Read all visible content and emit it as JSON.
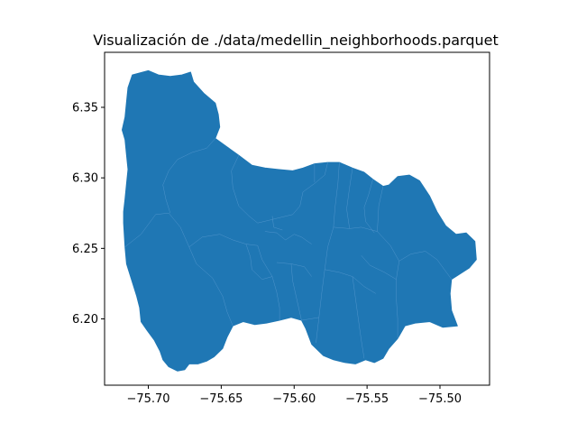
{
  "chart_data": {
    "type": "map",
    "title": "Visualización de ./data/medellin_neighborhoods.parquet",
    "xlabel": "",
    "ylabel": "",
    "xlim": [
      -75.73,
      -75.466
    ],
    "ylim": [
      6.153,
      6.389
    ],
    "x_ticks": [
      -75.7,
      -75.65,
      -75.6,
      -75.55,
      -75.5
    ],
    "x_tick_labels": [
      "−75.70",
      "−75.65",
      "−75.60",
      "−75.55",
      "−75.50"
    ],
    "y_ticks": [
      6.2,
      6.25,
      6.3,
      6.35
    ],
    "y_tick_labels": [
      "6.20",
      "6.25",
      "6.30",
      "6.35"
    ],
    "grid": false,
    "fill_color": "#1f77b4",
    "border_color": "#5a9ad0",
    "outline": [
      [
        -75.711,
        6.373
      ],
      [
        -75.7,
        6.376
      ],
      [
        -75.693,
        6.373
      ],
      [
        -75.685,
        6.372
      ],
      [
        -75.677,
        6.373
      ],
      [
        -75.671,
        6.375
      ],
      [
        -75.669,
        6.368
      ],
      [
        -75.662,
        6.36
      ],
      [
        -75.654,
        6.353
      ],
      [
        -75.652,
        6.345
      ],
      [
        -75.651,
        6.336
      ],
      [
        -75.654,
        6.328
      ],
      [
        -75.646,
        6.322
      ],
      [
        -75.638,
        6.316
      ],
      [
        -75.629,
        6.309
      ],
      [
        -75.62,
        6.307
      ],
      [
        -75.611,
        6.306
      ],
      [
        -75.601,
        6.305
      ],
      [
        -75.594,
        6.307
      ],
      [
        -75.586,
        6.31
      ],
      [
        -75.577,
        6.311
      ],
      [
        -75.569,
        6.311
      ],
      [
        -75.56,
        6.307
      ],
      [
        -75.552,
        6.304
      ],
      [
        -75.546,
        6.299
      ],
      [
        -75.539,
        6.294
      ],
      [
        -75.535,
        6.295
      ],
      [
        -75.529,
        6.301
      ],
      [
        -75.521,
        6.302
      ],
      [
        -75.514,
        6.298
      ],
      [
        -75.507,
        6.287
      ],
      [
        -75.502,
        6.276
      ],
      [
        -75.496,
        6.266
      ],
      [
        -75.489,
        6.26
      ],
      [
        -75.482,
        6.261
      ],
      [
        -75.476,
        6.255
      ],
      [
        -75.475,
        6.242
      ],
      [
        -75.48,
        6.236
      ],
      [
        -75.492,
        6.228
      ],
      [
        -75.493,
        6.218
      ],
      [
        -75.492,
        6.206
      ],
      [
        -75.488,
        6.195
      ],
      [
        -75.498,
        6.194
      ],
      [
        -75.507,
        6.198
      ],
      [
        -75.517,
        6.197
      ],
      [
        -75.524,
        6.195
      ],
      [
        -75.529,
        6.186
      ],
      [
        -75.535,
        6.179
      ],
      [
        -75.539,
        6.172
      ],
      [
        -75.545,
        6.169
      ],
      [
        -75.551,
        6.171
      ],
      [
        -75.558,
        6.168
      ],
      [
        -75.565,
        6.169
      ],
      [
        -75.573,
        6.171
      ],
      [
        -75.58,
        6.174
      ],
      [
        -75.588,
        6.182
      ],
      [
        -75.592,
        6.193
      ],
      [
        -75.595,
        6.199
      ],
      [
        -75.602,
        6.201
      ],
      [
        -75.61,
        6.199
      ],
      [
        -75.619,
        6.197
      ],
      [
        -75.627,
        6.196
      ],
      [
        -75.635,
        6.198
      ],
      [
        -75.642,
        6.195
      ],
      [
        -75.646,
        6.187
      ],
      [
        -75.649,
        6.179
      ],
      [
        -75.655,
        6.173
      ],
      [
        -75.66,
        6.17
      ],
      [
        -75.666,
        6.168
      ],
      [
        -75.672,
        6.168
      ],
      [
        -75.675,
        6.164
      ],
      [
        -75.68,
        6.163
      ],
      [
        -75.686,
        6.166
      ],
      [
        -75.69,
        6.171
      ],
      [
        -75.692,
        6.177
      ],
      [
        -75.696,
        6.185
      ],
      [
        -75.701,
        6.192
      ],
      [
        -75.705,
        6.198
      ],
      [
        -75.706,
        6.208
      ],
      [
        -75.708,
        6.216
      ],
      [
        -75.711,
        6.226
      ],
      [
        -75.715,
        6.239
      ],
      [
        -75.716,
        6.251
      ],
      [
        -75.717,
        6.268
      ],
      [
        -75.717,
        6.276
      ],
      [
        -75.716,
        6.285
      ],
      [
        -75.715,
        6.296
      ],
      [
        -75.714,
        6.306
      ],
      [
        -75.715,
        6.316
      ],
      [
        -75.716,
        6.327
      ],
      [
        -75.718,
        6.334
      ],
      [
        -75.716,
        6.343
      ],
      [
        -75.715,
        6.354
      ],
      [
        -75.714,
        6.364
      ],
      [
        -75.711,
        6.373
      ]
    ],
    "internal_borders": [
      [
        [
          -75.638,
          6.316
        ],
        [
          -75.643,
          6.305
        ],
        [
          -75.642,
          6.293
        ],
        [
          -75.638,
          6.28
        ],
        [
          -75.631,
          6.273
        ],
        [
          -75.625,
          6.268
        ]
      ],
      [
        [
          -75.716,
          6.251
        ],
        [
          -75.705,
          6.26
        ],
        [
          -75.695,
          6.274
        ],
        [
          -75.686,
          6.275
        ],
        [
          -75.678,
          6.265
        ],
        [
          -75.672,
          6.251
        ]
      ],
      [
        [
          -75.672,
          6.251
        ],
        [
          -75.667,
          6.239
        ],
        [
          -75.656,
          6.229
        ],
        [
          -75.649,
          6.216
        ],
        [
          -75.646,
          6.205
        ],
        [
          -75.642,
          6.195
        ]
      ],
      [
        [
          -75.672,
          6.251
        ],
        [
          -75.663,
          6.258
        ],
        [
          -75.651,
          6.26
        ],
        [
          -75.642,
          6.256
        ],
        [
          -75.633,
          6.253
        ],
        [
          -75.625,
          6.252
        ]
      ],
      [
        [
          -75.625,
          6.268
        ],
        [
          -75.617,
          6.27
        ],
        [
          -75.609,
          6.272
        ],
        [
          -75.601,
          6.274
        ]
      ],
      [
        [
          -75.625,
          6.252
        ],
        [
          -75.622,
          6.242
        ],
        [
          -75.615,
          6.23
        ],
        [
          -75.612,
          6.219
        ],
        [
          -75.61,
          6.208
        ],
        [
          -75.61,
          6.199
        ]
      ],
      [
        [
          -75.612,
          6.24
        ],
        [
          -75.602,
          6.239
        ],
        [
          -75.593,
          6.237
        ],
        [
          -75.588,
          6.23
        ]
      ],
      [
        [
          -75.601,
          6.274
        ],
        [
          -75.596,
          6.28
        ],
        [
          -75.594,
          6.29
        ],
        [
          -75.586,
          6.296
        ],
        [
          -75.579,
          6.302
        ],
        [
          -75.577,
          6.311
        ]
      ],
      [
        [
          -75.586,
          6.31
        ],
        [
          -75.586,
          6.297
        ]
      ],
      [
        [
          -75.569,
          6.311
        ],
        [
          -75.57,
          6.296
        ],
        [
          -75.572,
          6.279
        ],
        [
          -75.573,
          6.265
        ],
        [
          -75.577,
          6.251
        ],
        [
          -75.579,
          6.235
        ],
        [
          -75.581,
          6.219
        ],
        [
          -75.583,
          6.201
        ],
        [
          -75.585,
          6.183
        ]
      ],
      [
        [
          -75.56,
          6.307
        ],
        [
          -75.562,
          6.293
        ],
        [
          -75.564,
          6.278
        ],
        [
          -75.562,
          6.264
        ]
      ],
      [
        [
          -75.546,
          6.299
        ],
        [
          -75.549,
          6.288
        ],
        [
          -75.552,
          6.279
        ],
        [
          -75.551,
          6.269
        ],
        [
          -75.545,
          6.261
        ]
      ],
      [
        [
          -75.539,
          6.294
        ],
        [
          -75.542,
          6.28
        ],
        [
          -75.543,
          6.262
        ]
      ],
      [
        [
          -75.573,
          6.265
        ],
        [
          -75.562,
          6.264
        ],
        [
          -75.554,
          6.265
        ],
        [
          -75.543,
          6.262
        ],
        [
          -75.534,
          6.252
        ],
        [
          -75.528,
          6.241
        ]
      ],
      [
        [
          -75.579,
          6.235
        ],
        [
          -75.569,
          6.233
        ],
        [
          -75.56,
          6.23
        ],
        [
          -75.552,
          6.223
        ],
        [
          -75.544,
          6.218
        ]
      ],
      [
        [
          -75.56,
          6.23
        ],
        [
          -75.558,
          6.215
        ],
        [
          -75.556,
          6.2
        ],
        [
          -75.554,
          6.185
        ],
        [
          -75.552,
          6.172
        ]
      ],
      [
        [
          -75.583,
          6.201
        ],
        [
          -75.595,
          6.199
        ]
      ],
      [
        [
          -75.62,
          6.262
        ],
        [
          -75.612,
          6.261
        ],
        [
          -75.606,
          6.256
        ],
        [
          -75.6,
          6.26
        ],
        [
          -75.595,
          6.258
        ],
        [
          -75.588,
          6.253
        ]
      ],
      [
        [
          -75.615,
          6.273
        ],
        [
          -75.614,
          6.265
        ],
        [
          -75.608,
          6.263
        ]
      ],
      [
        [
          -75.633,
          6.253
        ],
        [
          -75.63,
          6.244
        ],
        [
          -75.629,
          6.235
        ],
        [
          -75.622,
          6.228
        ],
        [
          -75.615,
          6.23
        ]
      ],
      [
        [
          -75.602,
          6.239
        ],
        [
          -75.601,
          6.227
        ],
        [
          -75.598,
          6.213
        ],
        [
          -75.595,
          6.199
        ]
      ],
      [
        [
          -75.528,
          6.241
        ],
        [
          -75.52,
          6.246
        ],
        [
          -75.51,
          6.248
        ],
        [
          -75.502,
          6.242
        ],
        [
          -75.492,
          6.228
        ]
      ],
      [
        [
          -75.528,
          6.241
        ],
        [
          -75.53,
          6.228
        ],
        [
          -75.53,
          6.215
        ],
        [
          -75.529,
          6.2
        ],
        [
          -75.529,
          6.186
        ]
      ],
      [
        [
          -75.554,
          6.245
        ],
        [
          -75.548,
          6.238
        ],
        [
          -75.538,
          6.233
        ],
        [
          -75.53,
          6.228
        ]
      ],
      [
        [
          -75.685,
          6.275
        ],
        [
          -75.688,
          6.285
        ],
        [
          -75.69,
          6.295
        ],
        [
          -75.686,
          6.305
        ],
        [
          -75.68,
          6.313
        ],
        [
          -75.67,
          6.318
        ],
        [
          -75.66,
          6.321
        ],
        [
          -75.654,
          6.328
        ]
      ]
    ]
  }
}
